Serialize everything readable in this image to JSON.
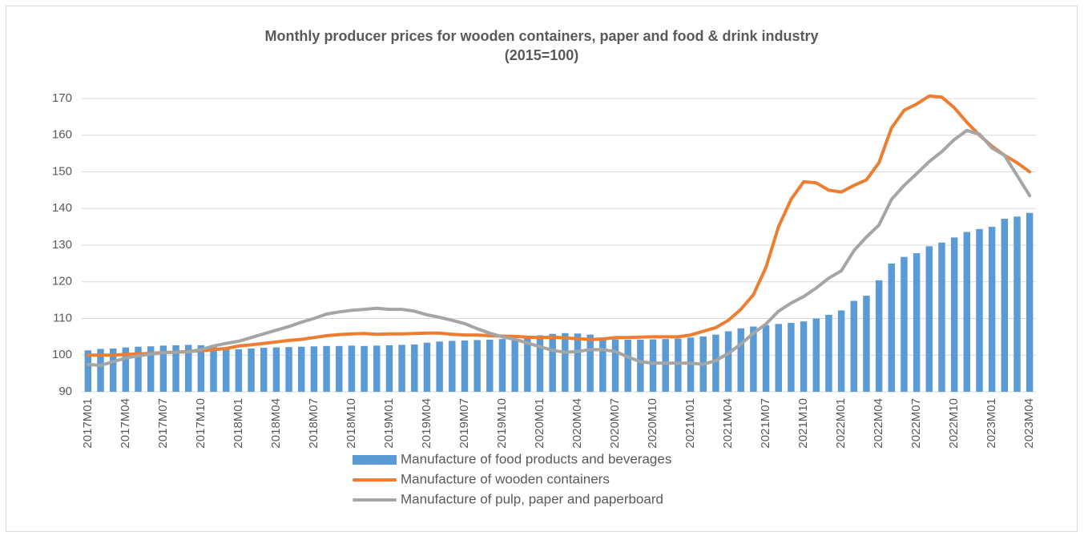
{
  "chart_data": {
    "type": "combo",
    "title": "Monthly producer prices for wooden containers, paper and food & drink industry",
    "subtitle": "(2015=100)",
    "categories": [
      "2017M01",
      null,
      null,
      "2017M04",
      null,
      null,
      "2017M07",
      null,
      null,
      "2017M10",
      null,
      null,
      "2018M01",
      null,
      null,
      "2018M04",
      null,
      null,
      "2018M07",
      null,
      null,
      "2018M10",
      null,
      null,
      "2019M01",
      null,
      null,
      "2019M04",
      null,
      null,
      "2019M07",
      null,
      null,
      "2019M10",
      null,
      null,
      "2020M01",
      null,
      null,
      "2020M04",
      null,
      null,
      "2020M07",
      null,
      null,
      "2020M10",
      null,
      null,
      "2021M01",
      null,
      null,
      "2021M04",
      null,
      null,
      "2021M07",
      null,
      null,
      "2021M10",
      null,
      null,
      "2022M01",
      null,
      null,
      "2022M04",
      null,
      null,
      "2022M07",
      null,
      null,
      "2022M10",
      null,
      null,
      "2023M01",
      null,
      null,
      "2023M04"
    ],
    "series": [
      {
        "name": "Manufacture of food products and beverages",
        "type": "bar",
        "color": "#5b9bd5",
        "values": [
          101.3,
          101.7,
          101.8,
          102.1,
          102.3,
          102.4,
          102.6,
          102.7,
          102.8,
          102.7,
          102.4,
          101.8,
          101.6,
          101.8,
          102.0,
          102.1,
          102.2,
          102.3,
          102.4,
          102.5,
          102.5,
          102.6,
          102.5,
          102.6,
          102.7,
          102.8,
          102.9,
          103.4,
          103.7,
          103.9,
          104.0,
          104.1,
          104.2,
          104.4,
          104.5,
          104.8,
          105.4,
          105.8,
          106.0,
          105.9,
          105.6,
          104.8,
          104.3,
          104.2,
          104.2,
          104.3,
          104.4,
          104.5,
          104.8,
          105.1,
          105.6,
          106.5,
          107.3,
          107.8,
          108.2,
          108.5,
          108.8,
          109.2,
          110.0,
          111.0,
          112.2,
          114.8,
          116.2,
          120.4,
          125.0,
          126.8,
          127.8,
          129.7,
          130.7,
          132.1,
          133.6,
          134.4,
          135.0,
          137.2,
          137.8,
          138.8
        ]
      },
      {
        "name": "Manufacture of wooden containers",
        "type": "line",
        "color": "#ed7d31",
        "values": [
          100,
          100,
          100,
          100.2,
          100.3,
          100.5,
          100.7,
          100.8,
          101,
          101.2,
          101.5,
          101.8,
          102.5,
          102.8,
          103.2,
          103.6,
          104,
          104.3,
          104.8,
          105.3,
          105.6,
          105.8,
          105.9,
          105.7,
          105.8,
          105.8,
          105.9,
          106,
          106,
          105.7,
          105.5,
          105.5,
          105.3,
          105.2,
          105.1,
          104.9,
          104.8,
          104.9,
          104.7,
          104.5,
          104.3,
          104.4,
          104.8,
          104.8,
          104.9,
          105,
          105,
          105,
          105.5,
          106.5,
          107.5,
          109.5,
          112.5,
          116.5,
          124,
          135,
          142.5,
          147.3,
          147,
          145,
          144.5,
          146.3,
          147.8,
          152.5,
          162,
          166.8,
          168.5,
          170.7,
          170.4,
          167.5,
          163.5,
          160,
          157,
          154.5,
          152.5,
          150
        ]
      },
      {
        "name": "Manufacture of pulp, paper and paperboard",
        "type": "line",
        "color": "#a5a5a5",
        "values": [
          97.5,
          97.2,
          98.2,
          99.2,
          99.8,
          100.3,
          100.7,
          100.8,
          100.9,
          101.5,
          102.5,
          103.2,
          103.8,
          104.8,
          105.8,
          106.8,
          107.8,
          109,
          110,
          111.2,
          111.8,
          112.2,
          112.5,
          112.8,
          112.5,
          112.5,
          112,
          111,
          110.3,
          109.5,
          108.6,
          107.2,
          106,
          105,
          104.3,
          103.3,
          102.3,
          101.3,
          100.8,
          101,
          101.5,
          101.5,
          101,
          99.5,
          98.2,
          97.8,
          97.8,
          97.8,
          97.8,
          97.5,
          98.5,
          100.5,
          103,
          106,
          108.5,
          112,
          114.2,
          116,
          118.3,
          121,
          123,
          128.5,
          132.2,
          135.5,
          142.5,
          146.3,
          149.5,
          152.8,
          155.5,
          158.8,
          161.3,
          160.3,
          156.5,
          154.5,
          149,
          143.5
        ]
      }
    ],
    "ylim": [
      90,
      170
    ],
    "yticks": [
      90,
      100,
      110,
      120,
      130,
      140,
      150,
      160,
      170
    ],
    "grid": true,
    "legend": "bottom"
  }
}
